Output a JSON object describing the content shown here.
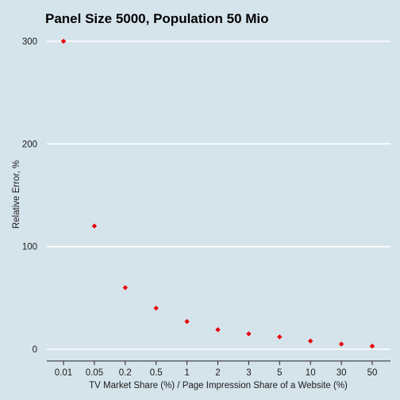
{
  "chart_data": {
    "type": "scatter",
    "title": "Panel Size 5000, Population 50 Mio",
    "xlabel": "TV Market Share (%) / Page Impression Share of a Website (%)",
    "ylabel": "Relative Error, %",
    "categories": [
      "0.01",
      "0.05",
      "0.2",
      "0.5",
      "1",
      "2",
      "3",
      "5",
      "10",
      "30",
      "50"
    ],
    "values": [
      300,
      120,
      60,
      40,
      27,
      19,
      15,
      12,
      8,
      5,
      3
    ],
    "yticks": [
      0,
      100,
      200,
      300
    ],
    "ylim": [
      -10,
      315
    ],
    "grid": "horizontal",
    "point_color": "#e8000b",
    "background_color": "#d5e4eb",
    "grid_color": "#ffffff"
  }
}
